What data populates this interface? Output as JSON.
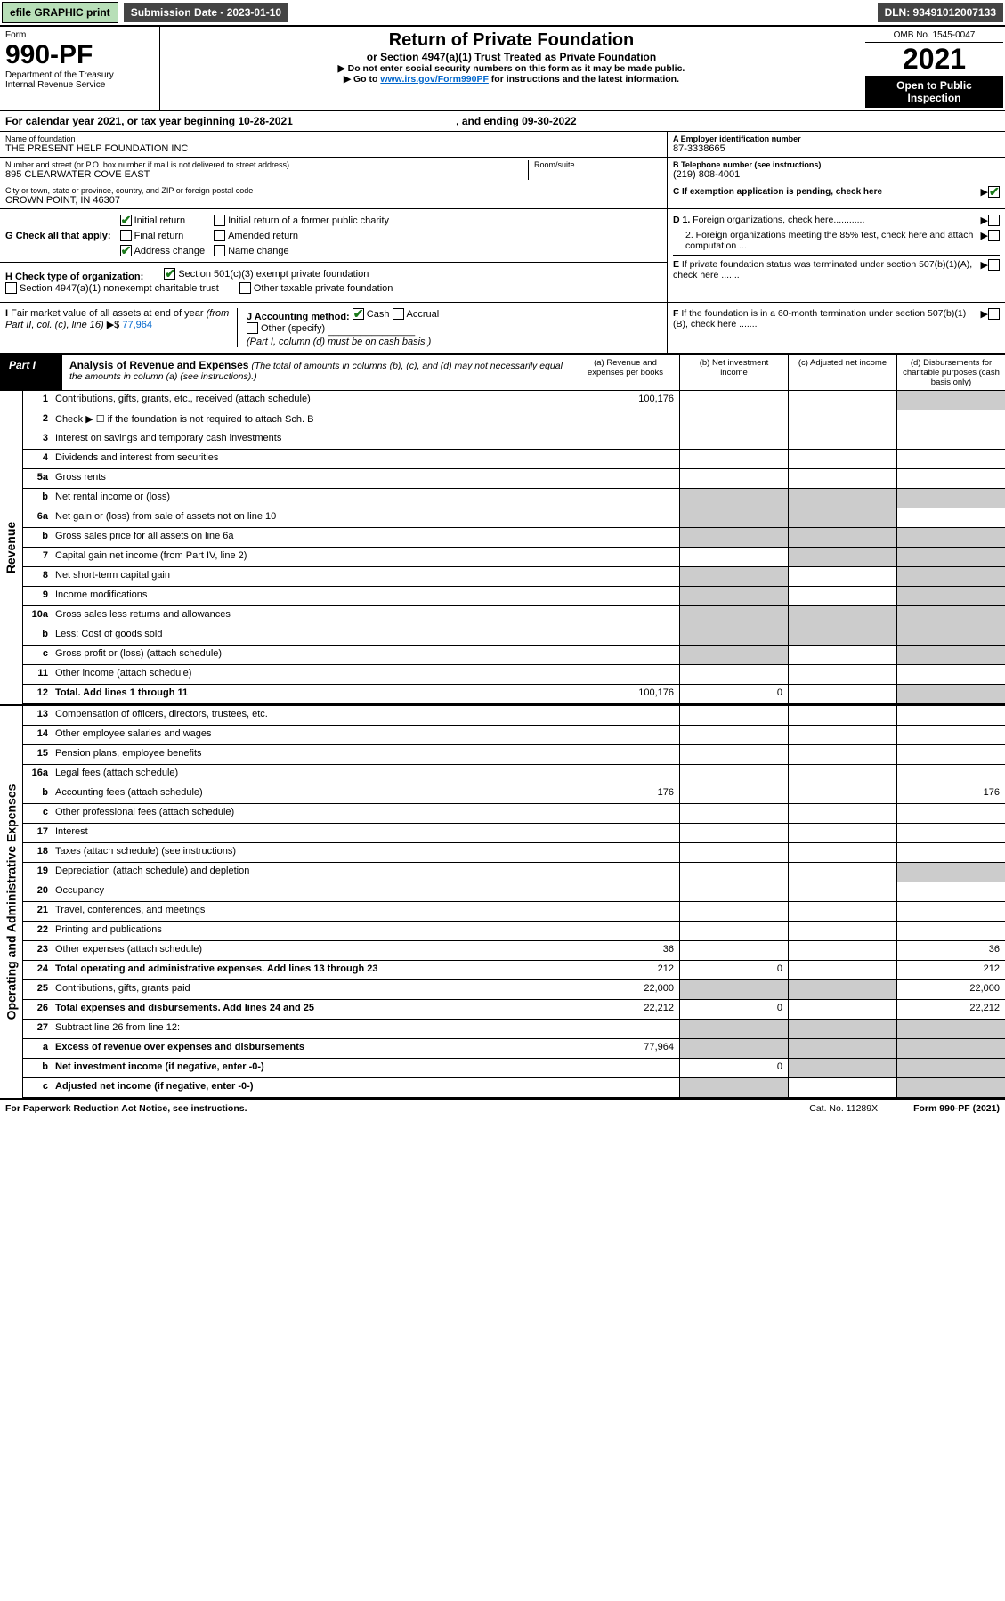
{
  "topbar": {
    "print_btn": "efile GRAPHIC print",
    "submission": "Submission Date - 2023-01-10",
    "dln": "DLN: 93491012007133"
  },
  "header": {
    "form_label": "Form",
    "form_number": "990-PF",
    "dept": "Department of the Treasury\nInternal Revenue Service",
    "title": "Return of Private Foundation",
    "subtitle": "or Section 4947(a)(1) Trust Treated as Private Foundation",
    "note1": "▶ Do not enter social security numbers on this form as it may be made public.",
    "note2_pre": "▶ Go to ",
    "note2_link": "www.irs.gov/Form990PF",
    "note2_post": " for instructions and the latest information.",
    "omb": "OMB No. 1545-0047",
    "year": "2021",
    "open": "Open to Public Inspection"
  },
  "cal_year": {
    "text": "For calendar year 2021, or tax year beginning 10-28-2021",
    "ending": ", and ending 09-30-2022"
  },
  "foundation": {
    "name_lbl": "Name of foundation",
    "name": "THE PRESENT HELP FOUNDATION INC",
    "street_lbl": "Number and street (or P.O. box number if mail is not delivered to street address)",
    "street": "895 CLEARWATER COVE EAST",
    "room_lbl": "Room/suite",
    "city_lbl": "City or town, state or province, country, and ZIP or foreign postal code",
    "city": "CROWN POINT, IN  46307",
    "ein_lbl": "A Employer identification number",
    "ein": "87-3338665",
    "phone_lbl": "B Telephone number (see instructions)",
    "phone": "(219) 808-4001",
    "c_lbl": "C If exemption application is pending, check here",
    "d1": "D 1. Foreign organizations, check here............",
    "d2": "2. Foreign organizations meeting the 85% test, check here and attach computation ...",
    "e_lbl": "E If private foundation status was terminated under section 507(b)(1)(A), check here .......",
    "f_lbl": "F If the foundation is in a 60-month termination under section 507(b)(1)(B), check here .......",
    "g_lbl": "G Check all that apply:",
    "g_initial": "Initial return",
    "g_initial_former": "Initial return of a former public charity",
    "g_final": "Final return",
    "g_amended": "Amended return",
    "g_address": "Address change",
    "g_name": "Name change",
    "h_lbl": "H Check type of organization:",
    "h_501c3": "Section 501(c)(3) exempt private foundation",
    "h_4947": "Section 4947(a)(1) nonexempt charitable trust",
    "h_other_tax": "Other taxable private foundation",
    "i_lbl": "I Fair market value of all assets at end of year (from Part II, col. (c), line 16)",
    "i_val": "77,964",
    "j_lbl": "J Accounting method:",
    "j_cash": "Cash",
    "j_accrual": "Accrual",
    "j_other": "Other (specify)",
    "j_note": "(Part I, column (d) must be on cash basis.)"
  },
  "part1": {
    "label": "Part I",
    "title": "Analysis of Revenue and Expenses",
    "desc": " (The total of amounts in columns (b), (c), and (d) may not necessarily equal the amounts in column (a) (see instructions).)",
    "cols": {
      "a": "(a) Revenue and expenses per books",
      "b": "(b) Net investment income",
      "c": "(c) Adjusted net income",
      "d": "(d) Disbursements for charitable purposes (cash basis only)"
    }
  },
  "sides": {
    "revenue": "Revenue",
    "expenses": "Operating and Administrative Expenses"
  },
  "rows": [
    {
      "n": "1",
      "lbl": "Contributions, gifts, grants, etc., received (attach schedule)",
      "a": "100,176",
      "d_shade": true
    },
    {
      "n": "2",
      "lbl": "Check ▶ ☐ if the foundation is not required to attach Sch. B",
      "noborder": true
    },
    {
      "n": "3",
      "lbl": "Interest on savings and temporary cash investments"
    },
    {
      "n": "4",
      "lbl": "Dividends and interest from securities"
    },
    {
      "n": "5a",
      "lbl": "Gross rents"
    },
    {
      "n": "b",
      "lbl": "Net rental income or (loss)",
      "b_shade": true,
      "c_shade": true,
      "d_shade": true
    },
    {
      "n": "6a",
      "lbl": "Net gain or (loss) from sale of assets not on line 10",
      "b_shade": true,
      "c_shade": true
    },
    {
      "n": "b",
      "lbl": "Gross sales price for all assets on line 6a",
      "b_shade": true,
      "c_shade": true,
      "d_shade": true
    },
    {
      "n": "7",
      "lbl": "Capital gain net income (from Part IV, line 2)",
      "c_shade": true,
      "d_shade": true
    },
    {
      "n": "8",
      "lbl": "Net short-term capital gain",
      "b_shade": true,
      "d_shade": true
    },
    {
      "n": "9",
      "lbl": "Income modifications",
      "b_shade": true,
      "d_shade": true
    },
    {
      "n": "10a",
      "lbl": "Gross sales less returns and allowances",
      "b_shade": true,
      "c_shade": true,
      "d_shade": true,
      "noborder": true
    },
    {
      "n": "b",
      "lbl": "Less: Cost of goods sold",
      "b_shade": true,
      "c_shade": true,
      "d_shade": true
    },
    {
      "n": "c",
      "lbl": "Gross profit or (loss) (attach schedule)",
      "b_shade": true,
      "d_shade": true
    },
    {
      "n": "11",
      "lbl": "Other income (attach schedule)"
    },
    {
      "n": "12",
      "lbl": "Total. Add lines 1 through 11",
      "bold": true,
      "a": "100,176",
      "b": "0",
      "d_shade": true
    }
  ],
  "exp_rows": [
    {
      "n": "13",
      "lbl": "Compensation of officers, directors, trustees, etc."
    },
    {
      "n": "14",
      "lbl": "Other employee salaries and wages"
    },
    {
      "n": "15",
      "lbl": "Pension plans, employee benefits"
    },
    {
      "n": "16a",
      "lbl": "Legal fees (attach schedule)"
    },
    {
      "n": "b",
      "lbl": "Accounting fees (attach schedule)",
      "a": "176",
      "d": "176"
    },
    {
      "n": "c",
      "lbl": "Other professional fees (attach schedule)"
    },
    {
      "n": "17",
      "lbl": "Interest"
    },
    {
      "n": "18",
      "lbl": "Taxes (attach schedule) (see instructions)"
    },
    {
      "n": "19",
      "lbl": "Depreciation (attach schedule) and depletion",
      "d_shade": true
    },
    {
      "n": "20",
      "lbl": "Occupancy"
    },
    {
      "n": "21",
      "lbl": "Travel, conferences, and meetings"
    },
    {
      "n": "22",
      "lbl": "Printing and publications"
    },
    {
      "n": "23",
      "lbl": "Other expenses (attach schedule)",
      "a": "36",
      "d": "36"
    },
    {
      "n": "24",
      "lbl": "Total operating and administrative expenses. Add lines 13 through 23",
      "bold": true,
      "a": "212",
      "b": "0",
      "d": "212"
    },
    {
      "n": "25",
      "lbl": "Contributions, gifts, grants paid",
      "a": "22,000",
      "b_shade": true,
      "c_shade": true,
      "d": "22,000"
    },
    {
      "n": "26",
      "lbl": "Total expenses and disbursements. Add lines 24 and 25",
      "bold": true,
      "a": "22,212",
      "b": "0",
      "d": "22,212"
    },
    {
      "n": "27",
      "lbl": "Subtract line 26 from line 12:",
      "b_shade": true,
      "c_shade": true,
      "d_shade": true
    },
    {
      "n": "a",
      "lbl": "Excess of revenue over expenses and disbursements",
      "bold": true,
      "a": "77,964",
      "b_shade": true,
      "c_shade": true,
      "d_shade": true
    },
    {
      "n": "b",
      "lbl": "Net investment income (if negative, enter -0-)",
      "bold": true,
      "b": "0",
      "c_shade": true,
      "d_shade": true
    },
    {
      "n": "c",
      "lbl": "Adjusted net income (if negative, enter -0-)",
      "bold": true,
      "b_shade": true,
      "d_shade": true
    }
  ],
  "footer": {
    "paperwork": "For Paperwork Reduction Act Notice, see instructions.",
    "cat": "Cat. No. 11289X",
    "form": "Form 990-PF (2021)"
  },
  "colors": {
    "shade": "#cccccc",
    "green_btn": "#b8dfb8",
    "dark_bar": "#444444",
    "check_green": "#1a7a1a",
    "link": "#0066cc"
  }
}
